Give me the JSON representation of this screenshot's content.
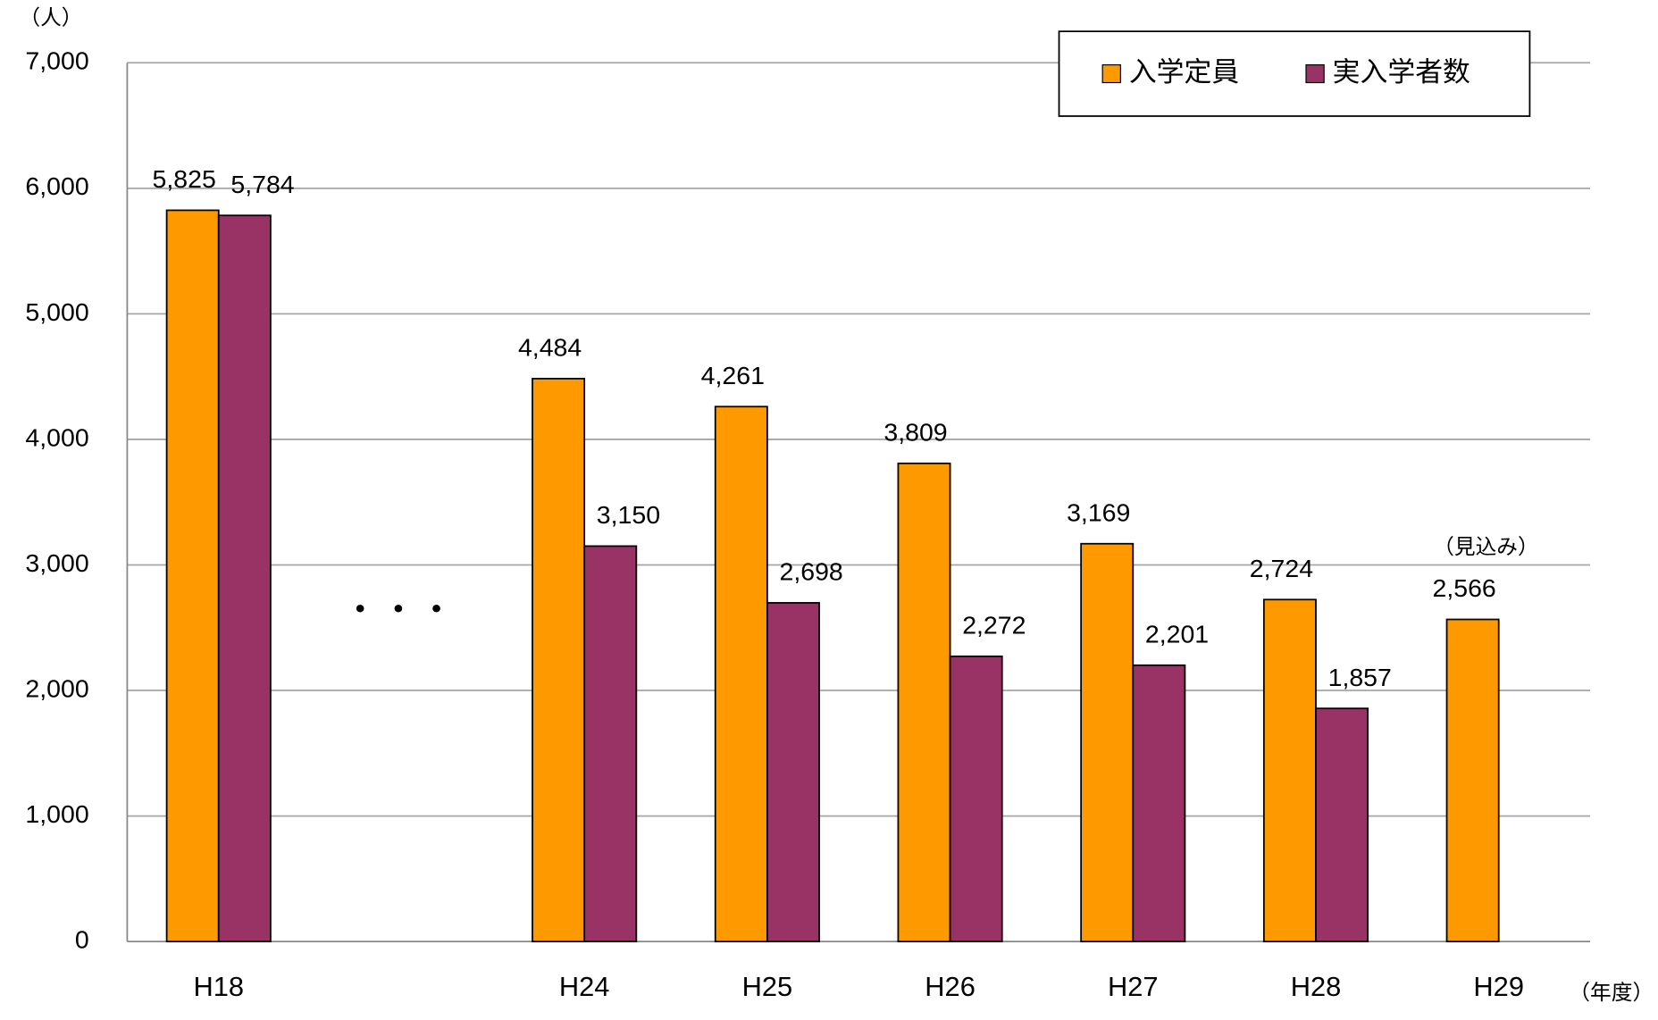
{
  "chart_data": {
    "type": "bar",
    "y_unit_label": "（人）",
    "x_unit_label": "（年度）",
    "annotations": [
      "・・・",
      "（見込み）"
    ],
    "categories": [
      "H18",
      null,
      "H24",
      "H25",
      "H26",
      "H27",
      "H28",
      "H29"
    ],
    "series": [
      {
        "name": "入学定員",
        "color": "#ff9900",
        "values": [
          5825,
          null,
          4484,
          4261,
          3809,
          3169,
          2724,
          2566
        ],
        "value_labels": [
          "5,825",
          null,
          "4,484",
          "4,261",
          "3,809",
          "3,169",
          "2,724",
          "2,566"
        ]
      },
      {
        "name": "実入学者数",
        "color": "#993366",
        "values": [
          5784,
          null,
          3150,
          2698,
          2272,
          2201,
          1857,
          null
        ],
        "value_labels": [
          "5,784",
          null,
          "3,150",
          "2,698",
          "2,272",
          "2,201",
          "1,857",
          null
        ]
      }
    ],
    "ylim": [
      0,
      7000
    ],
    "yticks": [
      0,
      {
        "value": 1000,
        "label": "1,000"
      },
      {
        "value": 2000,
        "label": "2,000"
      },
      {
        "value": 3000,
        "label": "3,000"
      },
      {
        "value": 4000,
        "label": "4,000"
      },
      {
        "value": 5000,
        "label": "5,000"
      },
      {
        "value": 6000,
        "label": "6,000"
      },
      {
        "value": 7000,
        "label": "7,000"
      }
    ],
    "grid": true,
    "legend": "top-right"
  }
}
